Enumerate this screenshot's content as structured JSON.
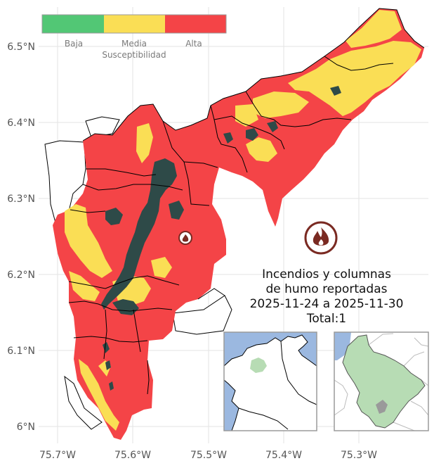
{
  "legend": {
    "title": "Susceptibilidad",
    "items": [
      {
        "label": "Baja",
        "color": "#52c775"
      },
      {
        "label": "Media",
        "color": "#fade55"
      },
      {
        "label": "Alta",
        "color": "#f44447"
      }
    ]
  },
  "axes": {
    "x_ticks": [
      "75.7°W",
      "75.6°W",
      "75.5°W",
      "75.4°W",
      "75.3°W"
    ],
    "y_ticks": [
      "6.5°N",
      "6.4°N",
      "6.3°N",
      "6.2°N",
      "6.1°N",
      "6°N"
    ]
  },
  "title": {
    "line1": "Incendios y columnas",
    "line2": "de humo reportadas",
    "line3": "2025-11-24 a 2025-11-30",
    "line4": "Total:1"
  },
  "colors": {
    "high": "#f44447",
    "medium": "#fade55",
    "low": "#52c775",
    "forest": "#2e4a48",
    "fire_icon": "#7a2a22",
    "inset_sea": "#9bb8e0",
    "inset_region": "#b7dcb4"
  },
  "icons": {
    "fire": "fire-icon"
  }
}
